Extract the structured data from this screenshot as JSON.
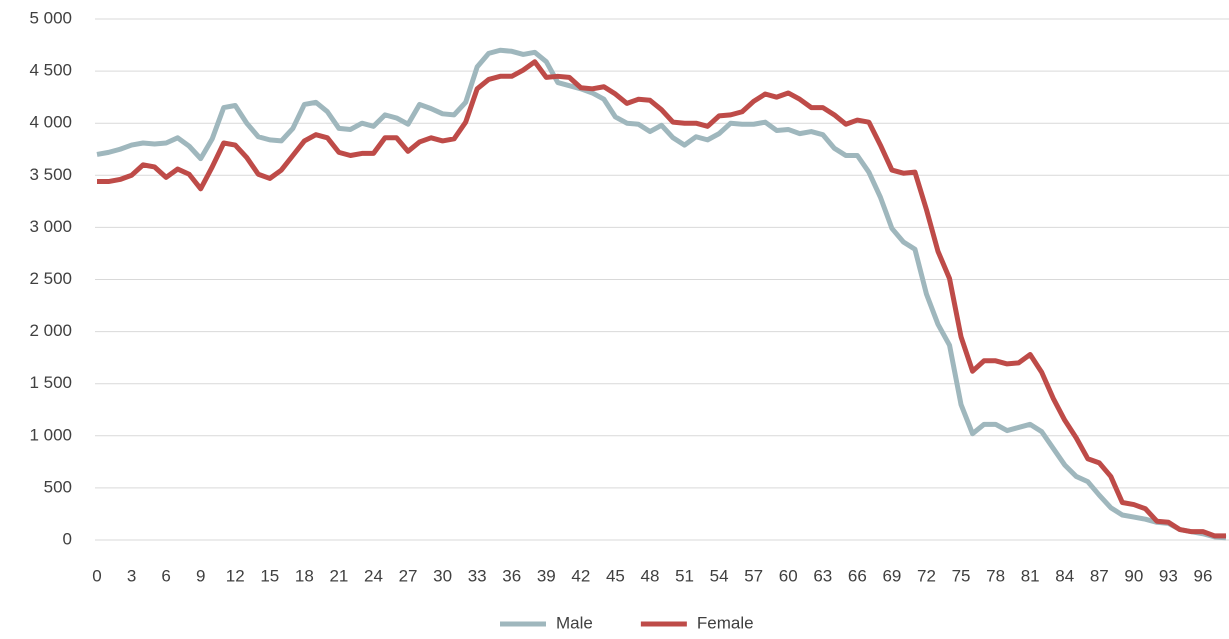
{
  "chart_data": {
    "type": "line",
    "categories": [
      0,
      null,
      null,
      3,
      null,
      null,
      6,
      null,
      null,
      9,
      null,
      null,
      12,
      null,
      null,
      15,
      null,
      null,
      18,
      null,
      null,
      21,
      null,
      null,
      24,
      null,
      null,
      27,
      null,
      null,
      30,
      null,
      null,
      33,
      null,
      null,
      36,
      null,
      null,
      39,
      null,
      null,
      42,
      null,
      null,
      45,
      null,
      null,
      48,
      null,
      null,
      51,
      null,
      null,
      54,
      null,
      null,
      57,
      null,
      null,
      60,
      null,
      null,
      63,
      null,
      null,
      66,
      null,
      null,
      69,
      null,
      null,
      72,
      null,
      null,
      75,
      null,
      null,
      78,
      null,
      null,
      81,
      null,
      null,
      84,
      null,
      null,
      87,
      null,
      null,
      90,
      null,
      null,
      93,
      null,
      null,
      96,
      null,
      null
    ],
    "series": [
      {
        "name": "Male",
        "color": "#9fb7bd",
        "values": [
          3700,
          3720,
          3750,
          3790,
          3810,
          3800,
          3810,
          3860,
          3780,
          3660,
          3850,
          4150,
          4170,
          4000,
          3870,
          3840,
          3830,
          3950,
          4180,
          4200,
          4110,
          3950,
          3940,
          4000,
          3970,
          4080,
          4050,
          3990,
          4180,
          4140,
          4090,
          4080,
          4200,
          4540,
          4670,
          4700,
          4690,
          4660,
          4680,
          4590,
          4390,
          4360,
          4330,
          4290,
          4230,
          4060,
          4000,
          3990,
          3920,
          3980,
          3860,
          3790,
          3870,
          3840,
          3900,
          4000,
          3990,
          3990,
          4010,
          3930,
          3940,
          3900,
          3920,
          3890,
          3760,
          3690,
          3690,
          3530,
          3290,
          2990,
          2860,
          2790,
          2360,
          2070,
          1870,
          1300,
          1020,
          1110,
          1110,
          1050,
          1080,
          1110,
          1040,
          880,
          720,
          610,
          560,
          430,
          310,
          240,
          220,
          200,
          170,
          160,
          100,
          80,
          60,
          30,
          20
        ]
      },
      {
        "name": "Female",
        "color": "#be4b48",
        "values": [
          3440,
          3440,
          3460,
          3500,
          3600,
          3580,
          3480,
          3560,
          3510,
          3370,
          3580,
          3810,
          3790,
          3670,
          3510,
          3470,
          3550,
          3690,
          3830,
          3890,
          3860,
          3720,
          3690,
          3710,
          3710,
          3860,
          3860,
          3730,
          3820,
          3860,
          3830,
          3850,
          4010,
          4330,
          4420,
          4450,
          4450,
          4510,
          4590,
          4440,
          4450,
          4440,
          4340,
          4330,
          4350,
          4280,
          4190,
          4230,
          4220,
          4130,
          4010,
          4000,
          4000,
          3970,
          4070,
          4080,
          4110,
          4210,
          4280,
          4250,
          4290,
          4230,
          4150,
          4150,
          4080,
          3990,
          4030,
          4010,
          3790,
          3550,
          3520,
          3530,
          3170,
          2770,
          2510,
          1950,
          1620,
          1720,
          1720,
          1690,
          1700,
          1780,
          1610,
          1360,
          1150,
          980,
          780,
          740,
          610,
          360,
          340,
          300,
          180,
          170,
          100,
          80,
          80,
          40,
          40
        ]
      }
    ],
    "ylim": [
      0,
      5000
    ],
    "yticks": [
      0,
      500,
      {
        "value": 1000,
        "label": "1 000"
      },
      {
        "value": 1500,
        "label": "1 500"
      },
      {
        "value": 2000,
        "label": "2 000"
      },
      {
        "value": 2500,
        "label": "2 500"
      },
      {
        "value": 3000,
        "label": "3 000"
      },
      {
        "value": 3500,
        "label": "3 500"
      },
      {
        "value": 4000,
        "label": "4 000"
      },
      {
        "value": 4500,
        "label": "4 500"
      },
      {
        "value": 5000,
        "label": "5 000"
      }
    ],
    "grid": true,
    "legend": "bottom"
  }
}
